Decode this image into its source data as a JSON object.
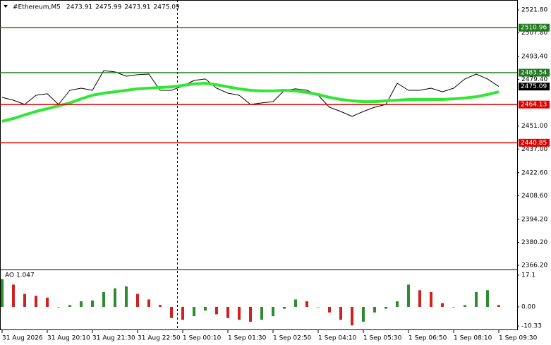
{
  "chart_data": [
    {
      "type": "line",
      "symbol": "#Ethereum,M5",
      "ohlc": [
        2473.91,
        2475.99,
        2473.91,
        2475.09
      ],
      "last_price": 2475.09,
      "ylim": [
        2363.62,
        2527.82
      ],
      "yticks": [
        {
          "value": 2521.8,
          "label": "2521.80"
        },
        {
          "value": 2507.8,
          "label": "2507.80"
        },
        {
          "value": 2493.4,
          "label": "2493.40"
        },
        {
          "value": 2479.4,
          "label": "2479.40"
        },
        {
          "value": 2451,
          "label": "2451.00"
        },
        {
          "value": 2437,
          "label": "2437.00"
        },
        {
          "value": 2422.6,
          "label": "2422.60"
        },
        {
          "value": 2408.6,
          "label": "2408.60"
        },
        {
          "value": 2394.2,
          "label": "2394.20"
        },
        {
          "value": 2380.2,
          "label": "2380.20"
        },
        {
          "value": 2366.2,
          "label": "2366.20"
        }
      ],
      "levels": [
        {
          "value": 2510.96,
          "color": "#1f7a1f"
        },
        {
          "value": 2483.54,
          "color": "#1f7a1f"
        },
        {
          "value": 2464.13,
          "color": "#e00000"
        },
        {
          "value": 2440.85,
          "color": "#e00000"
        }
      ],
      "x_labels": [
        "31 Aug 2026",
        "31 Aug 20:10",
        "31 Aug 21:30",
        "31 Aug 22:50",
        "1 Sep 00:10",
        "1 Sep 01:30",
        "1 Sep 02:50",
        "1 Sep 04:10",
        "1 Sep 05:30",
        "1 Sep 06:50",
        "1 Sep 08:10",
        "1 Sep 09:30"
      ],
      "series": [
        {
          "color": "#000000",
          "values": [
            2468.5,
            2466.8,
            2464.2,
            2469.8,
            2470.7,
            2464.2,
            2472.8,
            2474.1,
            2472.8,
            2484.8,
            2484.0,
            2481.4,
            2482.3,
            2482.7,
            2472.8,
            2472.8,
            2475.4,
            2478.8,
            2479.7,
            2474.1,
            2471.1,
            2469.8,
            2464.2,
            2465.1,
            2465.9,
            2472.8,
            2473.7,
            2472.8,
            2469.8,
            2462.5,
            2459.9,
            2456.9,
            2459.9,
            2462.5,
            2464.2,
            2477.1,
            2472.8,
            2472.8,
            2474.1,
            2471.9,
            2474.1,
            2479.7,
            2482.7,
            2479.7,
            2475.1
          ]
        },
        {
          "color": "#33e633",
          "values": [
            2453.9,
            2455.6,
            2457.8,
            2459.9,
            2461.6,
            2463.4,
            2465.1,
            2467.6,
            2469.8,
            2471.1,
            2471.9,
            2472.8,
            2473.7,
            2474.1,
            2474.5,
            2474.9,
            2475.8,
            2476.7,
            2477.1,
            2476.2,
            2474.9,
            2473.7,
            2472.8,
            2472.4,
            2472.4,
            2472.8,
            2472.4,
            2471.5,
            2470.2,
            2468.5,
            2467.2,
            2466.4,
            2465.9,
            2465.9,
            2466.4,
            2466.8,
            2467.2,
            2467.2,
            2467.2,
            2467.2,
            2467.6,
            2468.1,
            2468.9,
            2470.2,
            2471.9
          ]
        }
      ]
    },
    {
      "type": "bar",
      "title": "AO 1.047",
      "up_color": "#2e8b2e",
      "down_color": "#d02020",
      "ylim": [
        -12.55,
        19.76
      ],
      "yticks": [
        17.1,
        {
          "value": 0,
          "label": "0.00"
        },
        -10.33
      ],
      "values": [
        15,
        12,
        7,
        6,
        5,
        0,
        1,
        3,
        3.5,
        8,
        10,
        11,
        7,
        4,
        1,
        -6,
        -7,
        -5,
        -2,
        -4,
        -6,
        -7,
        -8,
        -7,
        -5,
        -1,
        4,
        3,
        0,
        -3,
        -7,
        -10,
        -8,
        -3,
        -1,
        3,
        12,
        9,
        8,
        2,
        0,
        1,
        8,
        9,
        1
      ]
    }
  ]
}
